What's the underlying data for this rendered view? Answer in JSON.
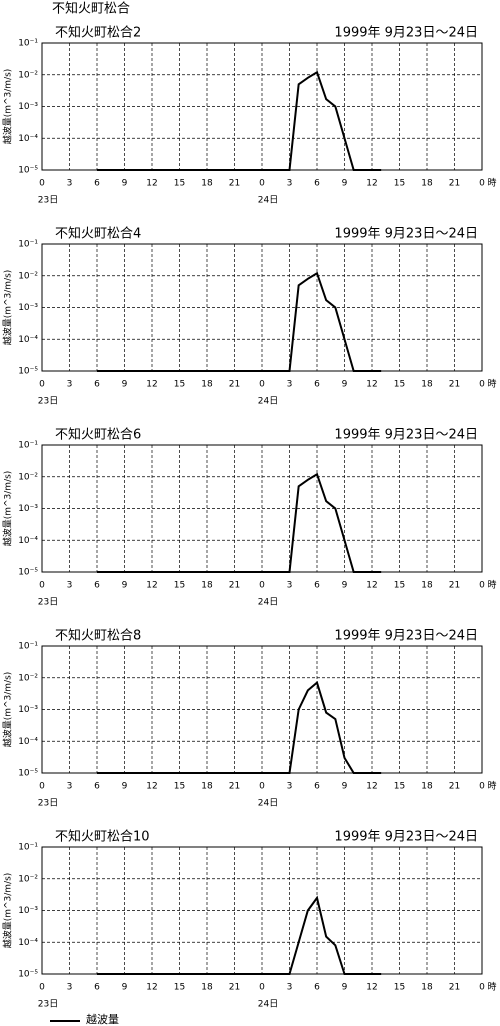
{
  "page_title": "不知火町松合",
  "chart_data": [
    {
      "type": "line",
      "title": "不知火町松合2",
      "subtitle": "1999年 9月23日～24日",
      "ylabel": "越波量(m^3/m/s)",
      "xlabel": "時",
      "day_labels": [
        "23日",
        "24日"
      ],
      "x": [
        6,
        27,
        28,
        29,
        30,
        31,
        32,
        33,
        34,
        37
      ],
      "series": [
        {
          "name": "越波量",
          "color": "#000000",
          "values": [
            1e-05,
            1e-05,
            0.005,
            0.008,
            0.012,
            0.0017,
            0.001,
            0.0001,
            1e-05,
            1e-05
          ]
        }
      ],
      "xlim": [
        0,
        48
      ],
      "xticks": [
        0,
        3,
        6,
        9,
        12,
        15,
        18,
        21,
        {
          "value": 24,
          "label": "0"
        },
        {
          "value": 27,
          "label": "3"
        },
        {
          "value": 30,
          "label": "6"
        },
        {
          "value": 33,
          "label": "9"
        },
        {
          "value": 36,
          "label": "12"
        },
        {
          "value": 39,
          "label": "15"
        },
        {
          "value": 42,
          "label": "18"
        },
        {
          "value": 45,
          "label": "21"
        },
        {
          "value": 48,
          "label": "0"
        }
      ],
      "ylim": [
        1e-05,
        0.1
      ],
      "yticks": [
        {
          "value": 1e-05,
          "label": "10⁻⁵"
        },
        {
          "value": 0.0001,
          "label": "10⁻⁴"
        },
        {
          "value": 0.001,
          "label": "10⁻³"
        },
        {
          "value": 0.01,
          "label": "10⁻²"
        },
        {
          "value": 0.1,
          "label": "10⁻¹"
        }
      ],
      "log_y": true,
      "grid": true
    },
    {
      "type": "line",
      "title": "不知火町松合4",
      "subtitle": "1999年 9月23日～24日",
      "ylabel": "越波量(m^3/m/s)",
      "xlabel": "時",
      "day_labels": [
        "23日",
        "24日"
      ],
      "x": [
        6,
        27,
        28,
        29,
        30,
        31,
        32,
        33,
        34,
        37
      ],
      "series": [
        {
          "name": "越波量",
          "color": "#000000",
          "values": [
            1e-05,
            1e-05,
            0.005,
            0.008,
            0.012,
            0.0017,
            0.001,
            0.0001,
            1e-05,
            1e-05
          ]
        }
      ],
      "xlim": [
        0,
        48
      ],
      "xticks": [
        0,
        3,
        6,
        9,
        12,
        15,
        18,
        21,
        {
          "value": 24,
          "label": "0"
        },
        {
          "value": 27,
          "label": "3"
        },
        {
          "value": 30,
          "label": "6"
        },
        {
          "value": 33,
          "label": "9"
        },
        {
          "value": 36,
          "label": "12"
        },
        {
          "value": 39,
          "label": "15"
        },
        {
          "value": 42,
          "label": "18"
        },
        {
          "value": 45,
          "label": "21"
        },
        {
          "value": 48,
          "label": "0"
        }
      ],
      "ylim": [
        1e-05,
        0.1
      ],
      "yticks": [
        {
          "value": 1e-05,
          "label": "10⁻⁵"
        },
        {
          "value": 0.0001,
          "label": "10⁻⁴"
        },
        {
          "value": 0.001,
          "label": "10⁻³"
        },
        {
          "value": 0.01,
          "label": "10⁻²"
        },
        {
          "value": 0.1,
          "label": "10⁻¹"
        }
      ],
      "log_y": true,
      "grid": true
    },
    {
      "type": "line",
      "title": "不知火町松合6",
      "subtitle": "1999年 9月23日～24日",
      "ylabel": "越波量(m^3/m/s)",
      "xlabel": "時",
      "day_labels": [
        "23日",
        "24日"
      ],
      "x": [
        6,
        27,
        28,
        29,
        30,
        31,
        32,
        33,
        34,
        37
      ],
      "series": [
        {
          "name": "越波量",
          "color": "#000000",
          "values": [
            1e-05,
            1e-05,
            0.005,
            0.008,
            0.012,
            0.0017,
            0.001,
            0.0001,
            1e-05,
            1e-05
          ]
        }
      ],
      "xlim": [
        0,
        48
      ],
      "xticks": [
        0,
        3,
        6,
        9,
        12,
        15,
        18,
        21,
        {
          "value": 24,
          "label": "0"
        },
        {
          "value": 27,
          "label": "3"
        },
        {
          "value": 30,
          "label": "6"
        },
        {
          "value": 33,
          "label": "9"
        },
        {
          "value": 36,
          "label": "12"
        },
        {
          "value": 39,
          "label": "15"
        },
        {
          "value": 42,
          "label": "18"
        },
        {
          "value": 45,
          "label": "21"
        },
        {
          "value": 48,
          "label": "0"
        }
      ],
      "ylim": [
        1e-05,
        0.1
      ],
      "yticks": [
        {
          "value": 1e-05,
          "label": "10⁻⁵"
        },
        {
          "value": 0.0001,
          "label": "10⁻⁴"
        },
        {
          "value": 0.001,
          "label": "10⁻³"
        },
        {
          "value": 0.01,
          "label": "10⁻²"
        },
        {
          "value": 0.1,
          "label": "10⁻¹"
        }
      ],
      "log_y": true,
      "grid": true
    },
    {
      "type": "line",
      "title": "不知火町松合8",
      "subtitle": "1999年 9月23日～24日",
      "ylabel": "越波量(m^3/m/s)",
      "xlabel": "時",
      "day_labels": [
        "23日",
        "24日"
      ],
      "x": [
        6,
        27,
        28,
        29,
        30,
        31,
        32,
        33,
        34,
        37
      ],
      "series": [
        {
          "name": "越波量",
          "color": "#000000",
          "values": [
            1e-05,
            1e-05,
            0.001,
            0.004,
            0.007,
            0.0008,
            0.0005,
            3e-05,
            1e-05,
            1e-05
          ]
        }
      ],
      "xlim": [
        0,
        48
      ],
      "xticks": [
        0,
        3,
        6,
        9,
        12,
        15,
        18,
        21,
        {
          "value": 24,
          "label": "0"
        },
        {
          "value": 27,
          "label": "3"
        },
        {
          "value": 30,
          "label": "6"
        },
        {
          "value": 33,
          "label": "9"
        },
        {
          "value": 36,
          "label": "12"
        },
        {
          "value": 39,
          "label": "15"
        },
        {
          "value": 42,
          "label": "18"
        },
        {
          "value": 45,
          "label": "21"
        },
        {
          "value": 48,
          "label": "0"
        }
      ],
      "ylim": [
        1e-05,
        0.1
      ],
      "yticks": [
        {
          "value": 1e-05,
          "label": "10⁻⁵"
        },
        {
          "value": 0.0001,
          "label": "10⁻⁴"
        },
        {
          "value": 0.001,
          "label": "10⁻³"
        },
        {
          "value": 0.01,
          "label": "10⁻²"
        },
        {
          "value": 0.1,
          "label": "10⁻¹"
        }
      ],
      "log_y": true,
      "grid": true
    },
    {
      "type": "line",
      "title": "不知火町松合10",
      "subtitle": "1999年 9月23日～24日",
      "ylabel": "越波量(m^3/m/s)",
      "xlabel": "時",
      "day_labels": [
        "23日",
        "24日"
      ],
      "x": [
        6,
        27,
        28,
        29,
        30,
        31,
        32,
        33,
        37
      ],
      "series": [
        {
          "name": "越波量",
          "color": "#000000",
          "values": [
            1e-05,
            1e-05,
            0.0001,
            0.001,
            0.0025,
            0.00015,
            8e-05,
            1e-05,
            1e-05
          ]
        }
      ],
      "xlim": [
        0,
        48
      ],
      "xticks": [
        0,
        3,
        6,
        9,
        12,
        15,
        18,
        21,
        {
          "value": 24,
          "label": "0"
        },
        {
          "value": 27,
          "label": "3"
        },
        {
          "value": 30,
          "label": "6"
        },
        {
          "value": 33,
          "label": "9"
        },
        {
          "value": 36,
          "label": "12"
        },
        {
          "value": 39,
          "label": "15"
        },
        {
          "value": 42,
          "label": "18"
        },
        {
          "value": 45,
          "label": "21"
        },
        {
          "value": 48,
          "label": "0"
        }
      ],
      "ylim": [
        1e-05,
        0.1
      ],
      "yticks": [
        {
          "value": 1e-05,
          "label": "10⁻⁵"
        },
        {
          "value": 0.0001,
          "label": "10⁻⁴"
        },
        {
          "value": 0.001,
          "label": "10⁻³"
        },
        {
          "value": 0.01,
          "label": "10⁻²"
        },
        {
          "value": 0.1,
          "label": "10⁻¹"
        }
      ],
      "log_y": true,
      "grid": true
    }
  ]
}
